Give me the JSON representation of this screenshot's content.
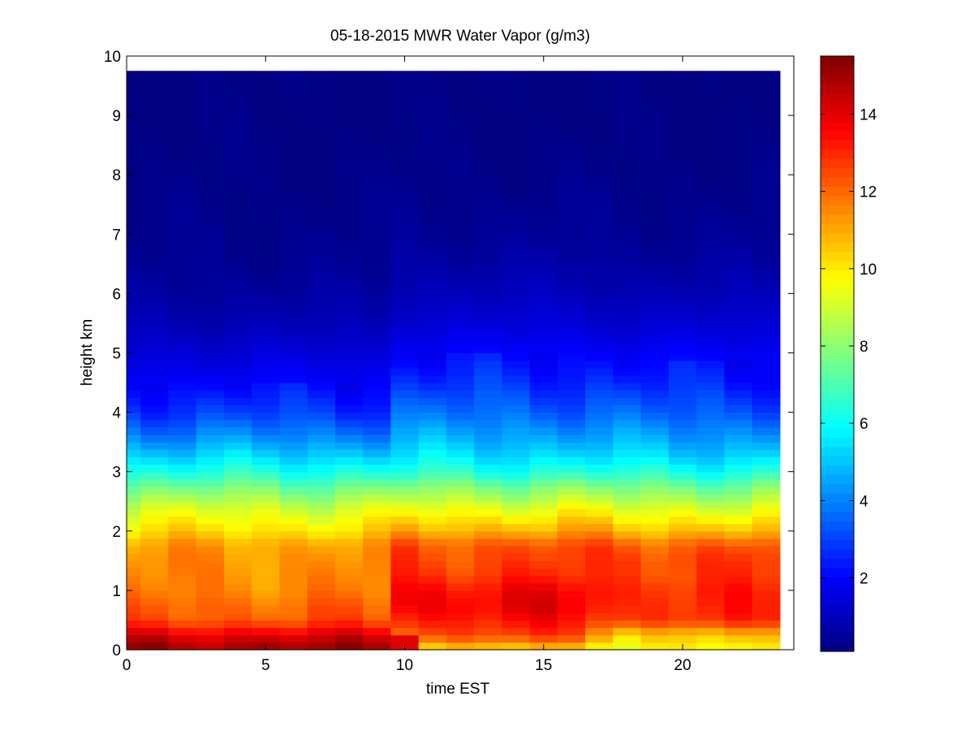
{
  "chart_data": {
    "type": "heatmap",
    "title": "05-18-2015 MWR Water Vapor (g/m3)",
    "xlabel": "time EST",
    "ylabel": "height km",
    "xlim": [
      0,
      24
    ],
    "ylim": [
      0,
      10
    ],
    "x_ticks": [
      "0",
      "5",
      "10",
      "15",
      "20"
    ],
    "y_ticks": [
      "0",
      "1",
      "2",
      "3",
      "4",
      "5",
      "6",
      "7",
      "8",
      "9",
      "10"
    ],
    "colorbar": {
      "colormap": "jet",
      "range": [
        0.1,
        15.5
      ],
      "ticks": [
        "2",
        "4",
        "6",
        "8",
        "10",
        "12",
        "14"
      ]
    },
    "time_hours": [
      0,
      1,
      2,
      3,
      4,
      5,
      6,
      7,
      8,
      9,
      10,
      11,
      12,
      13,
      14,
      15,
      16,
      17,
      18,
      19,
      20,
      21,
      22,
      23
    ],
    "data_extent_km": [
      0,
      9.75
    ],
    "profile_heights_km": [
      0.0,
      0.1,
      0.25,
      0.5,
      0.75,
      1.0,
      1.25,
      1.5,
      1.75,
      2.0,
      2.25,
      2.5,
      2.75,
      3.0,
      3.25,
      3.5,
      3.75,
      4.0,
      4.5,
      5.0,
      5.5,
      6.0,
      6.5,
      7.0,
      8.0,
      9.0,
      9.75
    ],
    "profiles_g_m3": {
      "night": [
        15.0,
        14.8,
        14.0,
        12.3,
        12.0,
        11.6,
        11.5,
        11.4,
        11.2,
        10.2,
        9.5,
        8.6,
        7.5,
        6.3,
        5.3,
        4.4,
        3.6,
        2.9,
        2.0,
        1.4,
        0.9,
        0.6,
        0.4,
        0.3,
        0.2,
        0.15,
        0.12
      ],
      "day": [
        10.0,
        11.2,
        12.5,
        13.3,
        13.8,
        13.6,
        12.9,
        12.6,
        12.4,
        11.0,
        10.0,
        8.9,
        7.8,
        6.4,
        5.5,
        4.8,
        4.2,
        3.6,
        2.7,
        2.0,
        1.4,
        1.0,
        0.7,
        0.45,
        0.25,
        0.15,
        0.12
      ],
      "evening": [
        9.5,
        10.0,
        10.5,
        12.8,
        13.0,
        13.0,
        12.7,
        12.7,
        12.3,
        10.8,
        9.8,
        8.7,
        7.6,
        6.3,
        5.3,
        4.6,
        4.0,
        3.4,
        2.5,
        1.9,
        1.3,
        0.9,
        0.6,
        0.4,
        0.22,
        0.14,
        0.12
      ]
    }
  }
}
